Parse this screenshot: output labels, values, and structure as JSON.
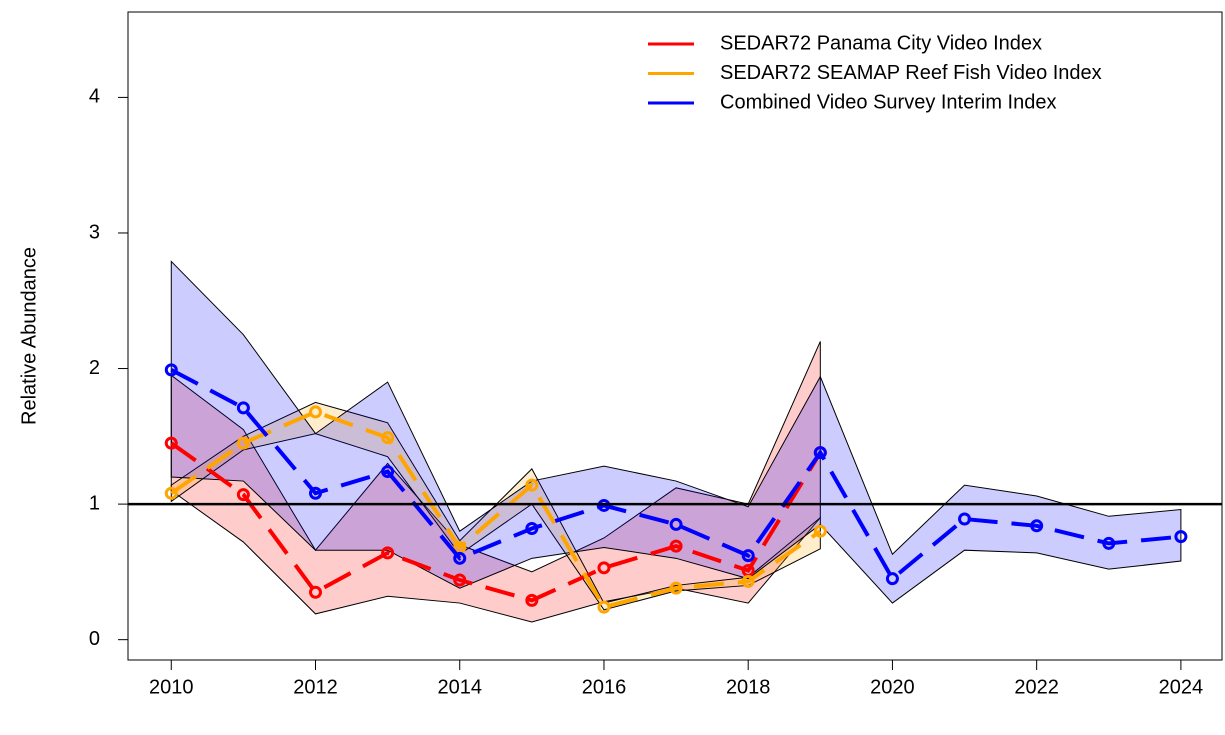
{
  "chart_data": {
    "type": "line",
    "y_label": "Relative Abundance",
    "x": [
      2010,
      2011,
      2012,
      2013,
      2014,
      2015,
      2016,
      2017,
      2018,
      2019,
      2020,
      2021,
      2022,
      2023,
      2024
    ],
    "xlim": [
      2009.4,
      2024.57
    ],
    "xticks": [
      2010,
      2012,
      2014,
      2016,
      2018,
      2020,
      2022,
      2024
    ],
    "ylim": [
      -0.15,
      4.63
    ],
    "yticks": [
      0,
      1,
      2,
      3,
      4
    ],
    "hline": 1,
    "legend": "top-right",
    "series": [
      {
        "name": "SEDAR72 Panama City Video Index",
        "color": "#ff0000",
        "values": [
          1.45,
          1.07,
          0.35,
          0.64,
          0.44,
          0.29,
          0.53,
          0.69,
          0.51,
          1.38,
          null,
          null,
          null,
          null,
          null
        ],
        "lower": [
          1.1,
          0.72,
          0.19,
          0.32,
          0.27,
          0.13,
          0.28,
          0.38,
          0.27,
          0.9,
          null,
          null,
          null,
          null,
          null
        ],
        "upper": [
          1.95,
          1.55,
          0.66,
          1.3,
          0.7,
          0.5,
          0.75,
          1.12,
          1.0,
          2.2,
          null,
          null,
          null,
          null,
          null
        ]
      },
      {
        "name": "SEDAR72 SEAMAP Reef Fish Video Index",
        "color": "#ffa500",
        "values": [
          1.08,
          1.45,
          1.68,
          1.49,
          0.68,
          1.14,
          0.24,
          0.38,
          0.43,
          0.8,
          null,
          null,
          null,
          null,
          null
        ],
        "lower": [
          1.02,
          1.4,
          1.52,
          1.35,
          0.63,
          1.0,
          0.22,
          0.36,
          0.4,
          0.67,
          null,
          null,
          null,
          null,
          null
        ],
        "upper": [
          1.14,
          1.5,
          1.75,
          1.6,
          0.73,
          1.26,
          0.27,
          0.4,
          0.46,
          0.9,
          null,
          null,
          null,
          null,
          null
        ]
      },
      {
        "name": "Combined Video Survey Interim Index",
        "color": "#0000ff",
        "values": [
          1.99,
          1.71,
          1.08,
          1.24,
          0.6,
          0.82,
          0.99,
          0.85,
          0.62,
          1.38,
          0.45,
          0.89,
          0.84,
          0.71,
          0.76
        ],
        "lower": [
          1.2,
          1.17,
          0.66,
          0.66,
          0.38,
          0.6,
          0.68,
          0.6,
          0.45,
          0.85,
          0.27,
          0.66,
          0.64,
          0.52,
          0.58
        ],
        "upper": [
          2.79,
          2.25,
          1.52,
          1.9,
          0.8,
          1.17,
          1.28,
          1.17,
          0.98,
          1.94,
          0.63,
          1.14,
          1.06,
          0.91,
          0.96
        ]
      }
    ]
  }
}
